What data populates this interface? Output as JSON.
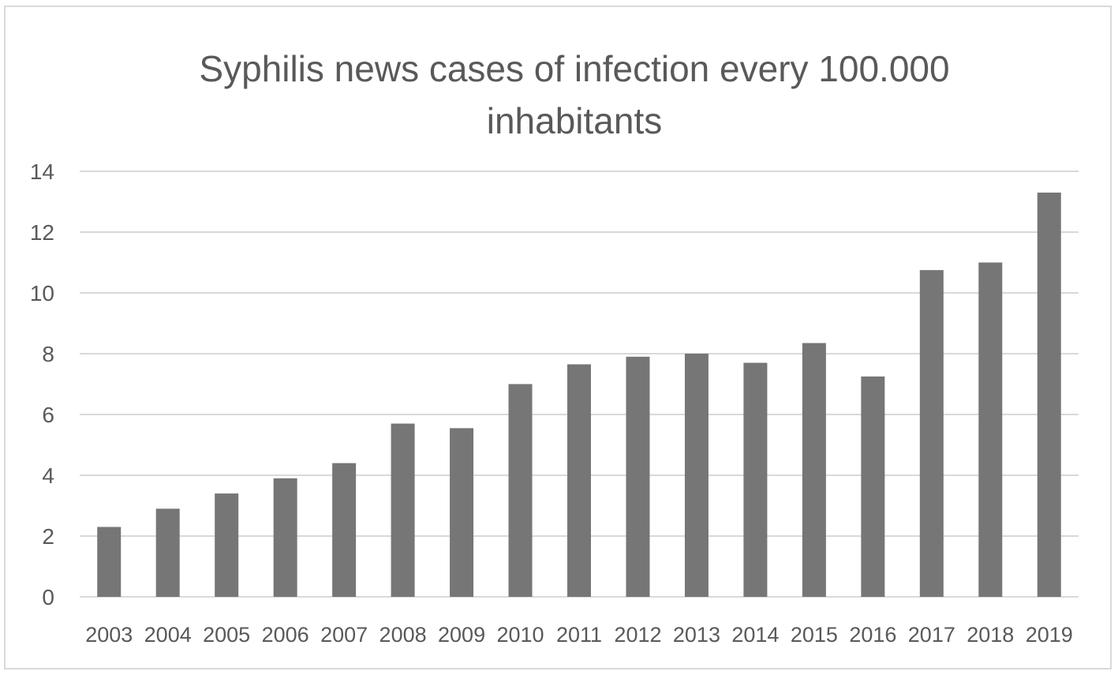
{
  "chart_data": {
    "type": "bar",
    "title_lines": [
      "Syphilis news cases of infection every 100.000",
      "inhabitants"
    ],
    "xlabel": "",
    "ylabel": "",
    "categories": [
      "2003",
      "2004",
      "2005",
      "2006",
      "2007",
      "2008",
      "2009",
      "2010",
      "2011",
      "2012",
      "2013",
      "2014",
      "2015",
      "2016",
      "2017",
      "2018",
      "2019"
    ],
    "values": [
      2.3,
      2.9,
      3.4,
      3.9,
      4.4,
      5.7,
      5.55,
      7.0,
      7.65,
      7.9,
      8.0,
      7.7,
      8.35,
      7.25,
      10.75,
      11.0,
      13.3
    ],
    "yticks": [
      "0",
      "2",
      "4",
      "6",
      "8",
      "10",
      "12",
      "14"
    ],
    "ylim": [
      0,
      14
    ],
    "grid": true,
    "legend": "none",
    "bar_color": "#767676",
    "grid_color": "#d9d9d9",
    "text_color": "#595959"
  }
}
